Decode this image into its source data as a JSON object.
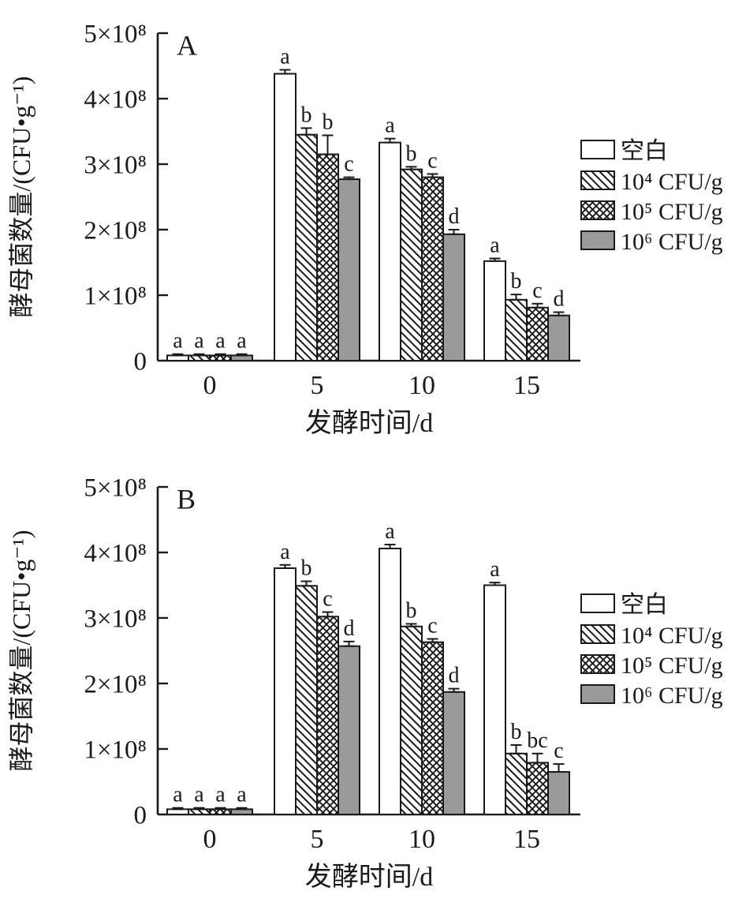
{
  "figure": {
    "background": "#ffffff",
    "bar_outline": "#1a1a1a",
    "gray_fill": "#9a9a9a",
    "text_color": "#1a1a1a"
  },
  "chart_data": [
    {
      "type": "bar",
      "panel_label": "A",
      "xlabel": "发酵时间/d",
      "ylabel": "酵母菌数量/(CFU•g⁻¹)",
      "value_unit": "×10⁸ CFU/g",
      "categories": [
        "0",
        "5",
        "10",
        "15"
      ],
      "y_ticks": [
        "0",
        "1×10⁸",
        "2×10⁸",
        "3×10⁸",
        "4×10⁸",
        "5×10⁸"
      ],
      "ylim": [
        0,
        5
      ],
      "grid": false,
      "legend_position": "right",
      "series": [
        {
          "name": "空白",
          "pattern": "white",
          "values": [
            0.08,
            4.38,
            3.33,
            1.52
          ],
          "errors": [
            0.02,
            0.06,
            0.06,
            0.04
          ],
          "letters": [
            "a",
            "a",
            "a",
            "a"
          ]
        },
        {
          "name": "10⁴ CFU/g",
          "pattern": "diagonal-hatch",
          "values": [
            0.08,
            3.45,
            2.92,
            0.93
          ],
          "errors": [
            0.02,
            0.1,
            0.04,
            0.08
          ],
          "letters": [
            "a",
            "b",
            "b",
            "b"
          ]
        },
        {
          "name": "10⁵ CFU/g",
          "pattern": "cross-hatch",
          "values": [
            0.08,
            3.15,
            2.8,
            0.81
          ],
          "errors": [
            0.02,
            0.29,
            0.05,
            0.06
          ],
          "letters": [
            "a",
            "b",
            "c",
            "c"
          ]
        },
        {
          "name": "10⁶ CFU/g",
          "pattern": "solid-gray",
          "values": [
            0.08,
            2.77,
            1.93,
            0.69
          ],
          "errors": [
            0.02,
            0.03,
            0.07,
            0.05
          ],
          "letters": [
            "a",
            "c",
            "d",
            "d"
          ]
        }
      ]
    },
    {
      "type": "bar",
      "panel_label": "B",
      "xlabel": "发酵时间/d",
      "ylabel": "酵母菌数量/(CFU•g⁻¹)",
      "value_unit": "×10⁸ CFU/g",
      "categories": [
        "0",
        "5",
        "10",
        "15"
      ],
      "y_ticks": [
        "0",
        "1×10⁸",
        "2×10⁸",
        "3×10⁸",
        "4×10⁸",
        "5×10⁸"
      ],
      "ylim": [
        0,
        5
      ],
      "grid": false,
      "legend_position": "right",
      "series": [
        {
          "name": "空白",
          "pattern": "white",
          "values": [
            0.08,
            3.76,
            4.06,
            3.5
          ],
          "errors": [
            0.02,
            0.05,
            0.06,
            0.04
          ],
          "letters": [
            "a",
            "a",
            "a",
            "a"
          ]
        },
        {
          "name": "10⁴ CFU/g",
          "pattern": "diagonal-hatch",
          "values": [
            0.08,
            3.49,
            2.87,
            0.93
          ],
          "errors": [
            0.02,
            0.07,
            0.04,
            0.13
          ],
          "letters": [
            "a",
            "b",
            "b",
            "b"
          ]
        },
        {
          "name": "10⁵ CFU/g",
          "pattern": "cross-hatch",
          "values": [
            0.08,
            3.02,
            2.63,
            0.79
          ],
          "errors": [
            0.02,
            0.07,
            0.05,
            0.14
          ],
          "letters": [
            "a",
            "c",
            "c",
            "bc"
          ]
        },
        {
          "name": "10⁶ CFU/g",
          "pattern": "solid-gray",
          "values": [
            0.08,
            2.57,
            1.87,
            0.65
          ],
          "errors": [
            0.02,
            0.07,
            0.05,
            0.12
          ],
          "letters": [
            "a",
            "d",
            "d",
            "c"
          ]
        }
      ]
    }
  ]
}
